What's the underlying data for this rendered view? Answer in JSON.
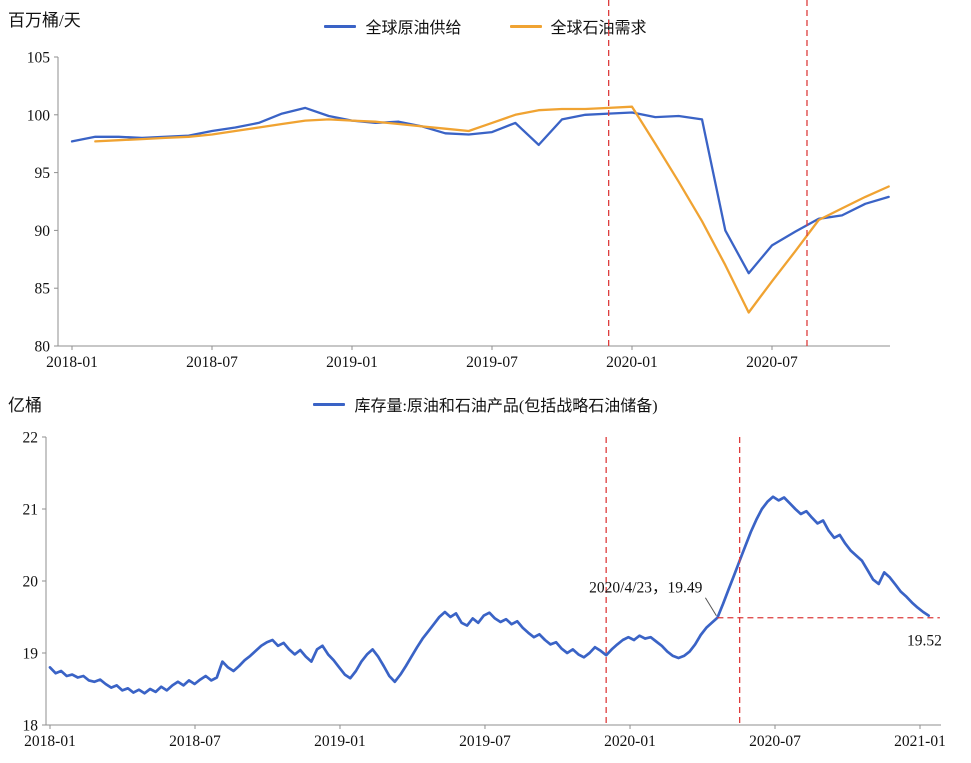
{
  "colors": {
    "supply": "#3a63c6",
    "demand": "#f0a332",
    "inventory": "#3a63c6",
    "event_line": "#dd3c3c",
    "axis": "#8f8f8f",
    "text": "#111111",
    "connector": "#555555"
  },
  "chart_data": [
    {
      "type": "line",
      "unit_label": "百万桶/天",
      "x_interval": "month",
      "x_start": "2018-01",
      "x_ticks": [
        "2018-01",
        "2018-07",
        "2019-01",
        "2019-07",
        "2020-01",
        "2020-07"
      ],
      "x_tick_positions": [
        0,
        6,
        12,
        18,
        24,
        30
      ],
      "y_tick_values": [
        80,
        85,
        90,
        95,
        100,
        105
      ],
      "ylim": [
        80,
        105
      ],
      "grid": false,
      "legend_position": "top-center",
      "event_positions": [
        23,
        31.5
      ],
      "series": [
        {
          "name": "全球原油供给",
          "color_key": "supply",
          "data_name": "supply-line",
          "values": [
            97.7,
            98.1,
            98.1,
            98.0,
            98.1,
            98.2,
            98.6,
            98.9,
            99.3,
            100.1,
            100.6,
            99.9,
            99.5,
            99.3,
            99.4,
            99.0,
            98.4,
            98.3,
            98.5,
            99.3,
            97.4,
            99.6,
            100.0,
            100.1,
            100.2,
            99.8,
            99.9,
            99.6,
            90.0,
            86.3,
            88.7,
            89.9,
            91.0,
            91.3,
            92.3,
            92.9
          ]
        },
        {
          "name": "全球石油需求",
          "color_key": "demand",
          "data_name": "demand-line",
          "values": [
            null,
            97.7,
            97.8,
            97.9,
            98.0,
            98.1,
            98.3,
            98.6,
            98.9,
            99.2,
            99.5,
            99.6,
            99.5,
            99.4,
            99.2,
            99.0,
            98.8,
            98.6,
            99.3,
            100.0,
            100.4,
            100.5,
            100.5,
            100.6,
            100.7,
            97.5,
            94.2,
            90.8,
            87.0,
            82.9,
            85.6,
            88.2,
            90.9,
            91.9,
            92.9,
            93.8
          ]
        }
      ]
    },
    {
      "type": "line",
      "unit_label": "亿桶",
      "x_interval": "week",
      "x_start": "2018-01",
      "x_ticks": [
        "2018-01",
        "2018-07",
        "2019-01",
        "2019-07",
        "2020-01",
        "2020-07",
        "2021-01"
      ],
      "x_tick_positions": [
        0,
        26.07,
        52.14,
        78.21,
        104.29,
        130.36,
        156.43
      ],
      "y_tick_values": [
        18,
        19,
        20,
        21,
        22
      ],
      "ylim": [
        18,
        22
      ],
      "grid": false,
      "legend_position": "top-center",
      "event_positions": [
        100,
        124
      ],
      "annotation": {
        "label": "2020/4/23，19.49",
        "index": 120,
        "value": 19.49
      },
      "ref_line_value": 19.49,
      "ref_line_end_index": 160,
      "end_label": "19.52",
      "series": [
        {
          "name": "库存量:原油和石油产品(包括战略石油储备)",
          "color_key": "inventory",
          "data_name": "inventory-line",
          "values": [
            18.8,
            18.72,
            18.75,
            18.68,
            18.7,
            18.66,
            18.68,
            18.62,
            18.6,
            18.63,
            18.57,
            18.52,
            18.55,
            18.48,
            18.51,
            18.45,
            18.49,
            18.44,
            18.5,
            18.46,
            18.53,
            18.48,
            18.55,
            18.6,
            18.55,
            18.62,
            18.57,
            18.63,
            18.68,
            18.62,
            18.66,
            18.88,
            18.8,
            18.75,
            18.82,
            18.9,
            18.96,
            19.03,
            19.1,
            19.15,
            19.18,
            19.1,
            19.14,
            19.05,
            18.98,
            19.04,
            18.95,
            18.88,
            19.05,
            19.1,
            18.98,
            18.9,
            18.8,
            18.7,
            18.65,
            18.75,
            18.88,
            18.98,
            19.05,
            18.95,
            18.82,
            18.68,
            18.6,
            18.7,
            18.82,
            18.95,
            19.08,
            19.2,
            19.3,
            19.4,
            19.5,
            19.57,
            19.5,
            19.55,
            19.42,
            19.38,
            19.48,
            19.42,
            19.52,
            19.56,
            19.48,
            19.43,
            19.47,
            19.4,
            19.44,
            19.35,
            19.28,
            19.22,
            19.26,
            19.18,
            19.12,
            19.15,
            19.06,
            19.0,
            19.05,
            18.98,
            18.94,
            19.0,
            19.08,
            19.03,
            18.97,
            19.05,
            19.12,
            19.18,
            19.22,
            19.18,
            19.24,
            19.2,
            19.22,
            19.16,
            19.1,
            19.02,
            18.96,
            18.93,
            18.96,
            19.02,
            19.12,
            19.25,
            19.35,
            19.42,
            19.49,
            19.68,
            19.88,
            20.08,
            20.28,
            20.48,
            20.68,
            20.85,
            21.0,
            21.1,
            21.17,
            21.12,
            21.16,
            21.08,
            21.0,
            20.93,
            20.97,
            20.88,
            20.8,
            20.84,
            20.7,
            20.6,
            20.64,
            20.52,
            20.42,
            20.35,
            20.28,
            20.15,
            20.02,
            19.96,
            20.12,
            20.05,
            19.95,
            19.85,
            19.78,
            19.7,
            19.63,
            19.57,
            19.52
          ]
        }
      ]
    }
  ]
}
